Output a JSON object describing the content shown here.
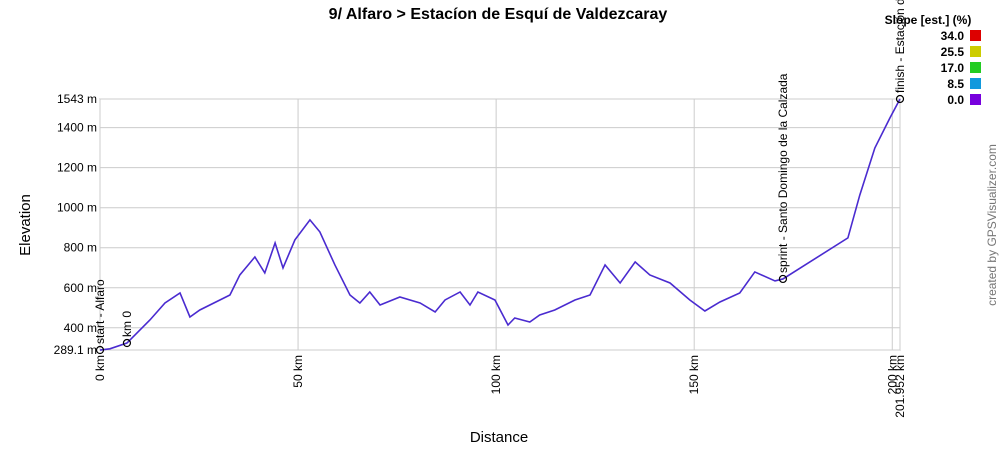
{
  "chart_data": {
    "type": "line",
    "title": "9/ Alfaro > Estacíon de Esquí de Valdezcaray",
    "x_label": "Distance",
    "y_label": "Elevation",
    "credit": "created by GPSVisualizer.com",
    "xlim": [
      0,
      201.952
    ],
    "ylim": [
      289.1,
      1543
    ],
    "xticks": [
      {
        "value": 0,
        "label": "0 km"
      },
      {
        "value": 50,
        "label": "50 km"
      },
      {
        "value": 100,
        "label": "100 km"
      },
      {
        "value": 150,
        "label": "150 km"
      },
      {
        "value": 200,
        "label": "200 km"
      },
      {
        "value": 201.952,
        "label": "201.952 km"
      }
    ],
    "yticks": [
      {
        "value": 289.1,
        "label": "289.1 m"
      },
      {
        "value": 400,
        "label": "400 m"
      },
      {
        "value": 600,
        "label": "600 m"
      },
      {
        "value": 800,
        "label": "800 m"
      },
      {
        "value": 1000,
        "label": "1000 m"
      },
      {
        "value": 1200,
        "label": "1200 m"
      },
      {
        "value": 1400,
        "label": "1400 m"
      },
      {
        "value": 1543,
        "label": "1543 m"
      }
    ],
    "grid": true,
    "series": [
      {
        "color": "#4a2bd0",
        "x": [
          0,
          2.5,
          6.8,
          12.6,
          16.4,
          20.2,
          22.7,
          25.2,
          32.8,
          35.3,
          39.1,
          41.6,
          44.2,
          46.2,
          49.2,
          53,
          55.5,
          59.3,
          63.1,
          65.6,
          68.1,
          70.7,
          75.7,
          80.8,
          84.6,
          87.1,
          90.9,
          93.4,
          95.4,
          99.7,
          103,
          104.7,
          108.5,
          111,
          114.8,
          119.9,
          123.7,
          127.5,
          131.3,
          135.1,
          138.8,
          143.9,
          148.9,
          152.7,
          156.5,
          161.5,
          165.3,
          170.4,
          172.4,
          179.2,
          188.8,
          191.8,
          195.6,
          199.4,
          201.952
        ],
        "values": [
          289,
          295,
          324,
          439,
          524,
          574,
          454,
          489,
          564,
          664,
          754,
          674,
          824,
          699,
          839,
          939,
          879,
          714,
          564,
          524,
          579,
          514,
          554,
          524,
          479,
          539,
          579,
          514,
          579,
          539,
          414,
          449,
          429,
          464,
          489,
          539,
          564,
          714,
          624,
          729,
          664,
          624,
          539,
          484,
          529,
          574,
          679,
          634,
          644,
          729,
          849,
          1063,
          1298,
          1448,
          1543
        ]
      }
    ],
    "waypoints": [
      {
        "label": "start - Alfaro",
        "x": 0,
        "y": 289
      },
      {
        "label": "km 0",
        "x": 6.8,
        "y": 324
      },
      {
        "label": "sprint - Santo Domingo de la Calzada",
        "x": 172.4,
        "y": 644
      },
      {
        "label": "finish - Estación de Esquí de Valdezcaray",
        "x": 201.952,
        "y": 1543
      }
    ],
    "slope_legend": {
      "title": "Slope [est.] (%)",
      "items": [
        {
          "label": "34.0",
          "color": "#dd0000"
        },
        {
          "label": "25.5",
          "color": "#cccc00"
        },
        {
          "label": "17.0",
          "color": "#22cc22"
        },
        {
          "label": "8.5",
          "color": "#1199dd"
        },
        {
          "label": "0.0",
          "color": "#7700dd"
        }
      ]
    }
  }
}
